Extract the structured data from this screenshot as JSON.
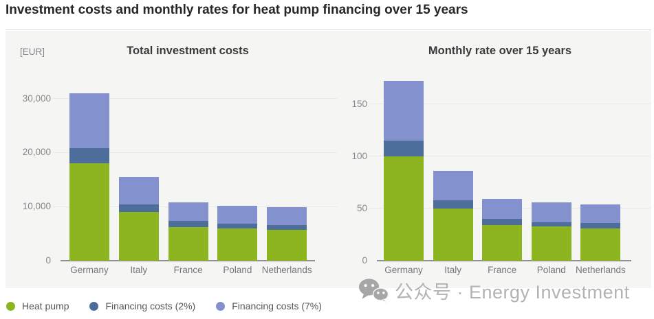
{
  "header": {
    "title": "Investment costs and monthly rates for heat pump financing over 15 years"
  },
  "legend": {
    "items": [
      {
        "label": "Heat pump",
        "color": "#8db51f"
      },
      {
        "label": "Financing costs (2%)",
        "color": "#4d6d9b"
      },
      {
        "label": "Financing costs (7%)",
        "color": "#8391ce"
      }
    ]
  },
  "watermark": {
    "icon": "wechat-icon",
    "text": "公众号 · Energy Investment"
  },
  "colors": {
    "heat_pump": "#8db51f",
    "financing_2pct": "#4d6d9b",
    "financing_7pct": "#8391ce",
    "panel_background": "#f5f5f4",
    "axis_text": "#87878a"
  },
  "chart_data": [
    {
      "id": "total-investment-costs",
      "type": "bar",
      "stacked": true,
      "title": "Total investment costs",
      "unit_label": "[EUR]",
      "categories": [
        "Germany",
        "Italy",
        "France",
        "Poland",
        "Netherlands"
      ],
      "series": [
        {
          "name": "Heat pump",
          "color": "#8db51f",
          "values": [
            18000,
            9000,
            6200,
            6000,
            5700
          ]
        },
        {
          "name": "Financing costs (2%)",
          "color": "#4d6d9b",
          "values": [
            2850,
            1400,
            1100,
            900,
            900
          ]
        },
        {
          "name": "Financing costs (7%)",
          "color": "#8391ce",
          "values": [
            10150,
            5100,
            3500,
            3300,
            3300
          ]
        }
      ],
      "cumulative_with_2pct": [
        20850,
        10400,
        7300,
        6900,
        6600
      ],
      "stack_totals": [
        31000,
        15500,
        10800,
        10200,
        9900
      ],
      "ylim": [
        0,
        34000
      ],
      "yticks": [
        {
          "value": 0,
          "label": "0"
        },
        {
          "value": 10000,
          "label": "10,000"
        },
        {
          "value": 20000,
          "label": "20,000"
        },
        {
          "value": 30000,
          "label": "30,000"
        }
      ],
      "grid": true,
      "legend_position": "bottom-left"
    },
    {
      "id": "monthly-rate",
      "type": "bar",
      "stacked": true,
      "title": "Monthly rate over 15 years",
      "unit_label": "",
      "categories": [
        "Germany",
        "Italy",
        "France",
        "Poland",
        "Netherlands"
      ],
      "series": [
        {
          "name": "Heat pump",
          "color": "#8db51f",
          "values": [
            100,
            50,
            34,
            33,
            31
          ]
        },
        {
          "name": "Financing costs (2%)",
          "color": "#4d6d9b",
          "values": [
            15,
            8,
            6,
            4,
            5
          ]
        },
        {
          "name": "Financing costs (7%)",
          "color": "#8391ce",
          "values": [
            57,
            28,
            19,
            19,
            18
          ]
        }
      ],
      "cumulative_with_2pct": [
        115,
        58,
        40,
        37,
        36
      ],
      "stack_totals": [
        172,
        86,
        59,
        56,
        54
      ],
      "ylim": [
        0,
        176
      ],
      "yticks": [
        {
          "value": 0,
          "label": "0"
        },
        {
          "value": 50,
          "label": "50"
        },
        {
          "value": 100,
          "label": "100"
        },
        {
          "value": 150,
          "label": "150"
        }
      ],
      "grid": true,
      "legend_position": "bottom-left"
    }
  ]
}
